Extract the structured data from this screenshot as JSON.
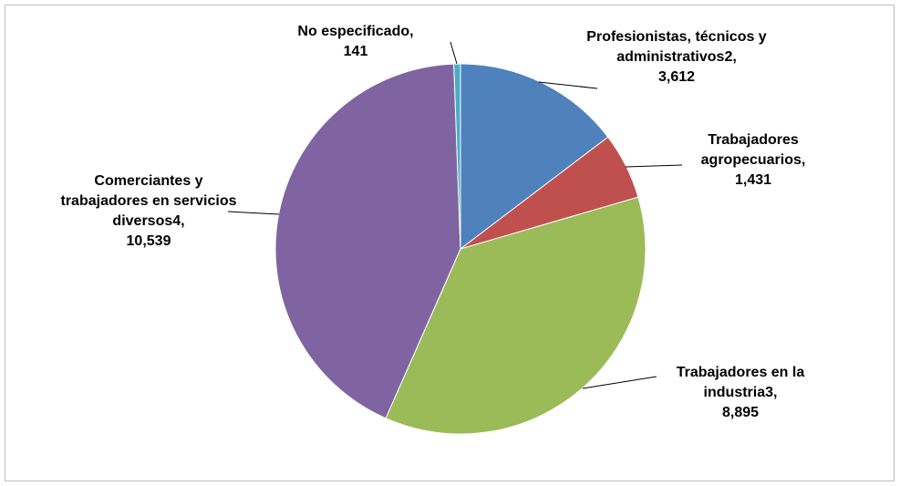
{
  "chart_data": {
    "type": "pie",
    "categories": [
      "Profesionistas, técnicos y administrativos2,",
      "Trabajadores agropecuarios,",
      "Trabajadores en la industria3,",
      "Comerciantes y trabajadores en servicios diversos4,",
      "No especificado,"
    ],
    "values": [
      3612,
      1431,
      8895,
      10539,
      141
    ],
    "value_labels": [
      "3,612",
      "1,431",
      "8,895",
      "10,539",
      "141"
    ],
    "colors": [
      "#4f81bd",
      "#c0504d",
      "#9bbb59",
      "#8064a2",
      "#4bacc6"
    ]
  }
}
